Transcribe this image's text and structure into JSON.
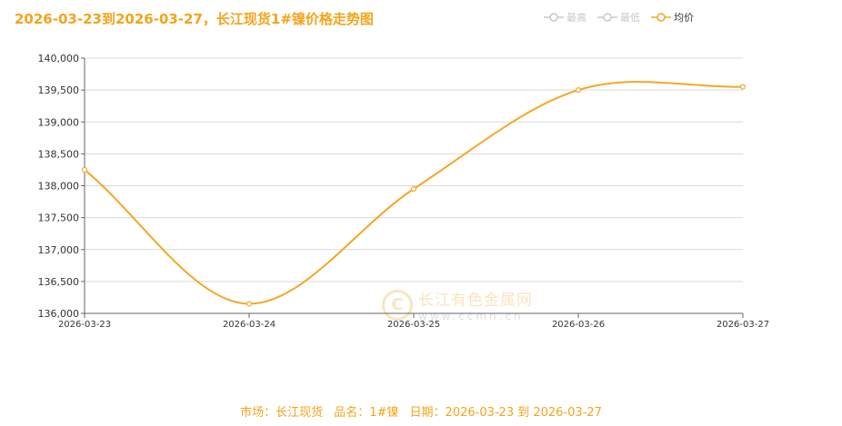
{
  "title": "2026-03-23到2026-03-27，长江现货1#镍价格走势图",
  "legend": [
    {
      "label": "最高",
      "active": false
    },
    {
      "label": "最低",
      "active": false
    },
    {
      "label": "均价",
      "active": true
    }
  ],
  "colors": {
    "line": "#f5a623",
    "inactive": "#c8c8c8",
    "axis": "#666666",
    "grid": "#d9d9d9"
  },
  "watermark": {
    "logo": "C",
    "name": "长江有色金属网",
    "url": "www.ccmn.cn"
  },
  "footer": {
    "market_label": "市场：长江现货",
    "product_label": "品名：1#镍",
    "date_label": "日期：2026-03-23 到 2026-03-27"
  },
  "chart_data": {
    "type": "line",
    "title": "2026-03-23到2026-03-27，长江现货1#镍价格走势图",
    "x": [
      "2026-03-23",
      "2026-03-24",
      "2026-03-25",
      "2026-03-26",
      "2026-03-27"
    ],
    "series": [
      {
        "name": "均价",
        "values": [
          138250,
          136150,
          137950,
          139500,
          139550
        ]
      }
    ],
    "ylim": [
      136000,
      140000
    ],
    "yticks": [
      136000,
      136500,
      137000,
      137500,
      138000,
      138500,
      139000,
      139500,
      140000
    ],
    "ytick_labels": [
      "136,000",
      "136,500",
      "137,000",
      "137,500",
      "138,000",
      "138,500",
      "139,000",
      "139,500",
      "140,000"
    ],
    "xlabel": "",
    "ylabel": "",
    "grid": true,
    "legend_position": "top-right"
  }
}
